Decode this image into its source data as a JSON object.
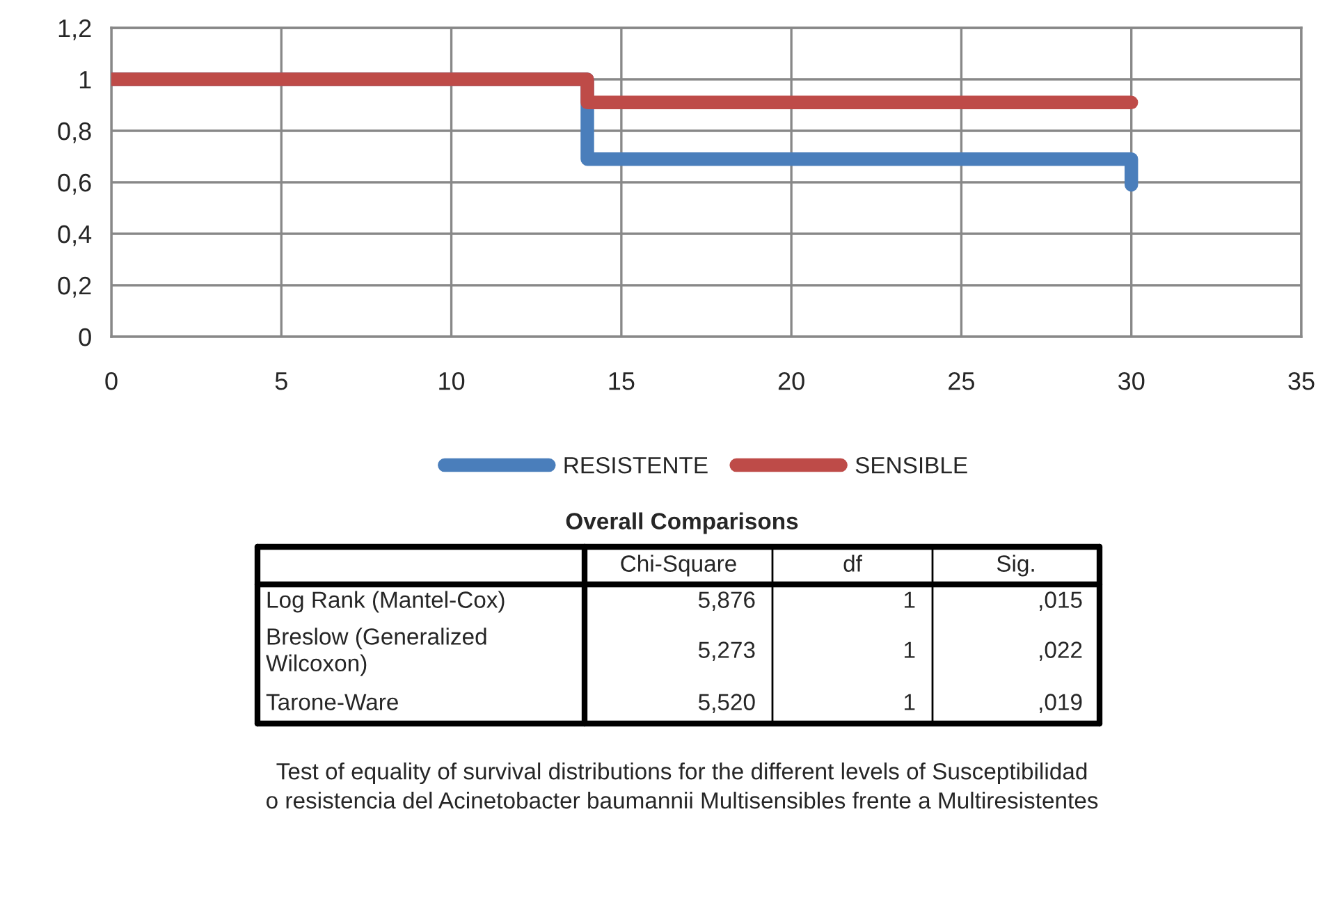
{
  "chart_data": {
    "type": "line",
    "series": [
      {
        "name": "RESISTENTE",
        "color": "#4a7ebb",
        "x": [
          0,
          14,
          14,
          30,
          30
        ],
        "values": [
          1,
          1,
          0.69,
          0.69,
          0.59
        ]
      },
      {
        "name": "SENSIBLE",
        "color": "#be4b48",
        "x": [
          0,
          14,
          14,
          30
        ],
        "values": [
          1,
          1,
          0.91,
          0.91
        ]
      }
    ],
    "xlim": [
      0,
      35
    ],
    "xticks": [
      0,
      5,
      10,
      15,
      20,
      25,
      30,
      35
    ],
    "ylim": [
      0,
      1.2
    ],
    "yticks": [
      0,
      {
        "value": 0.2,
        "label": "0,2"
      },
      {
        "value": 0.4,
        "label": "0,4"
      },
      {
        "value": 0.6,
        "label": "0,6"
      },
      {
        "value": 0.8,
        "label": "0,8"
      },
      1,
      {
        "value": 1.2,
        "label": "1,2"
      }
    ],
    "grid": true,
    "legend": "bottom",
    "marker": "none",
    "line_style": "solid",
    "annotations": [
      "Overall Comparisons",
      "Chi-Square",
      "df",
      "Sig.",
      "Log Rank (Mantel-Cox)",
      "5,876",
      "1",
      ",015",
      "Breslow (Generalized\nWilcoxon)",
      "5,273",
      "1",
      ",022",
      "Tarone-Ware",
      "5,520",
      "1",
      ",019",
      "Test of equality of survival distributions for the different levels of Susceptibilidad\no resistencia del Acinetobacter baumannii Multisensibles frente a Multiresistentes"
    ]
  }
}
